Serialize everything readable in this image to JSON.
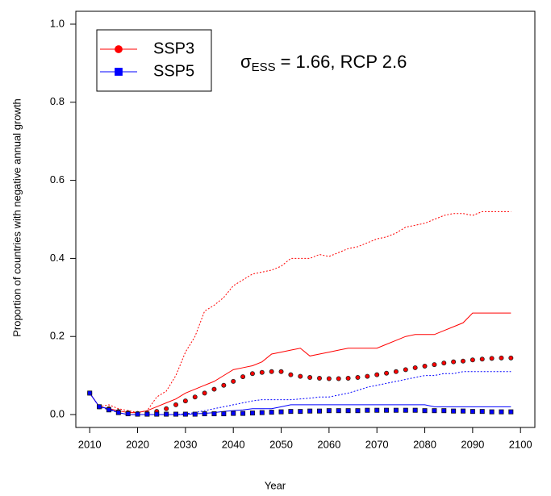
{
  "chart_data": {
    "type": "line",
    "y_label": "Proportion of countries with negative annual growth",
    "x_label": "Year",
    "annotation": {
      "symbol": "σ",
      "subscript": "ESS",
      "text": "= 1.66, RCP 2.6"
    },
    "legend": "top-left",
    "xlim": [
      2007.1,
      2103
    ],
    "ylim": [
      -0.033,
      1.033
    ],
    "xticks": [
      2010,
      2020,
      2030,
      2040,
      2050,
      2060,
      2070,
      2080,
      2090,
      2100
    ],
    "yticks": [
      {
        "value": 0,
        "label": "0.0"
      },
      {
        "value": 0.2,
        "label": "0.2"
      },
      {
        "value": 0.4,
        "label": "0.4"
      },
      {
        "value": 0.6,
        "label": "0.6"
      },
      {
        "value": 0.8,
        "label": "0.8"
      },
      {
        "value": 1,
        "label": "1.0"
      }
    ],
    "x": [
      2010,
      2012,
      2014,
      2016,
      2018,
      2020,
      2022,
      2024,
      2026,
      2028,
      2030,
      2032,
      2034,
      2036,
      2038,
      2040,
      2042,
      2044,
      2046,
      2048,
      2050,
      2052,
      2054,
      2056,
      2058,
      2060,
      2062,
      2064,
      2066,
      2068,
      2070,
      2072,
      2074,
      2076,
      2078,
      2080,
      2082,
      2084,
      2086,
      2088,
      2090,
      2092,
      2094,
      2096,
      2098
    ],
    "series": [
      {
        "color": "#ff0000",
        "dash": "dotted",
        "marker": "none",
        "values": [
          0.055,
          0.02,
          0.025,
          0.015,
          0.01,
          0.005,
          0.01,
          0.045,
          0.06,
          0.1,
          0.16,
          0.2,
          0.265,
          0.28,
          0.3,
          0.33,
          0.345,
          0.36,
          0.365,
          0.37,
          0.38,
          0.4,
          0.4,
          0.4,
          0.41,
          0.405,
          0.415,
          0.425,
          0.43,
          0.44,
          0.45,
          0.455,
          0.465,
          0.48,
          0.485,
          0.49,
          0.5,
          0.51,
          0.515,
          0.515,
          0.51,
          0.52,
          0.52,
          0.52,
          0.52
        ]
      },
      {
        "color": "#ff0000",
        "dash": "solid",
        "marker": "none",
        "values": [
          0.055,
          0.02,
          0.015,
          0.01,
          0.005,
          0.005,
          0.01,
          0.02,
          0.03,
          0.04,
          0.055,
          0.065,
          0.075,
          0.085,
          0.1,
          0.115,
          0.12,
          0.125,
          0.135,
          0.155,
          0.16,
          0.165,
          0.17,
          0.15,
          0.155,
          0.16,
          0.165,
          0.17,
          0.17,
          0.17,
          0.17,
          0.18,
          0.19,
          0.2,
          0.205,
          0.205,
          0.205,
          0.215,
          0.225,
          0.235,
          0.26,
          0.26,
          0.26,
          0.26,
          0.26
        ]
      },
      {
        "color": "#0000ff",
        "dash": "dotted",
        "marker": "none",
        "values": [
          0.055,
          0.02,
          0.012,
          0.005,
          0,
          0,
          0,
          0,
          0,
          0,
          0.002,
          0.005,
          0.01,
          0.015,
          0.02,
          0.025,
          0.03,
          0.035,
          0.038,
          0.038,
          0.038,
          0.038,
          0.04,
          0.042,
          0.045,
          0.045,
          0.05,
          0.055,
          0.062,
          0.07,
          0.075,
          0.08,
          0.085,
          0.09,
          0.095,
          0.1,
          0.1,
          0.105,
          0.105,
          0.11,
          0.11,
          0.11,
          0.11,
          0.11,
          0.11
        ]
      },
      {
        "color": "#0000ff",
        "dash": "solid",
        "marker": "none",
        "values": [
          0.055,
          0.02,
          0.015,
          0.005,
          0,
          0,
          0,
          0,
          0,
          0,
          0,
          0.002,
          0.003,
          0.005,
          0.008,
          0.01,
          0.012,
          0.015,
          0.015,
          0.015,
          0.02,
          0.025,
          0.025,
          0.025,
          0.025,
          0.025,
          0.025,
          0.025,
          0.025,
          0.025,
          0.025,
          0.025,
          0.025,
          0.025,
          0.025,
          0.025,
          0.02,
          0.02,
          0.02,
          0.02,
          0.02,
          0.02,
          0.02,
          0.02,
          0.02
        ]
      },
      {
        "name": "SSP3",
        "color": "#ff0000",
        "dash": "none",
        "marker": "circle",
        "values": [
          0.055,
          0.02,
          0.015,
          0.008,
          0.005,
          0.003,
          0.004,
          0.008,
          0.015,
          0.025,
          0.035,
          0.045,
          0.055,
          0.065,
          0.075,
          0.085,
          0.097,
          0.105,
          0.108,
          0.11,
          0.11,
          0.102,
          0.098,
          0.095,
          0.093,
          0.092,
          0.092,
          0.093,
          0.095,
          0.098,
          0.102,
          0.106,
          0.11,
          0.115,
          0.12,
          0.124,
          0.128,
          0.132,
          0.135,
          0.137,
          0.14,
          0.142,
          0.144,
          0.145,
          0.145
        ]
      },
      {
        "name": "SSP5",
        "color": "#0000ff",
        "dash": "none",
        "marker": "square",
        "values": [
          0.055,
          0.02,
          0.012,
          0.005,
          0.002,
          0.001,
          0.001,
          0.001,
          0.001,
          0.001,
          0.001,
          0.001,
          0.002,
          0.002,
          0.002,
          0.003,
          0.003,
          0.004,
          0.005,
          0.006,
          0.007,
          0.008,
          0.008,
          0.009,
          0.009,
          0.01,
          0.01,
          0.01,
          0.01,
          0.011,
          0.011,
          0.011,
          0.011,
          0.011,
          0.011,
          0.01,
          0.01,
          0.01,
          0.009,
          0.009,
          0.008,
          0.008,
          0.007,
          0.007,
          0.007
        ]
      }
    ]
  }
}
